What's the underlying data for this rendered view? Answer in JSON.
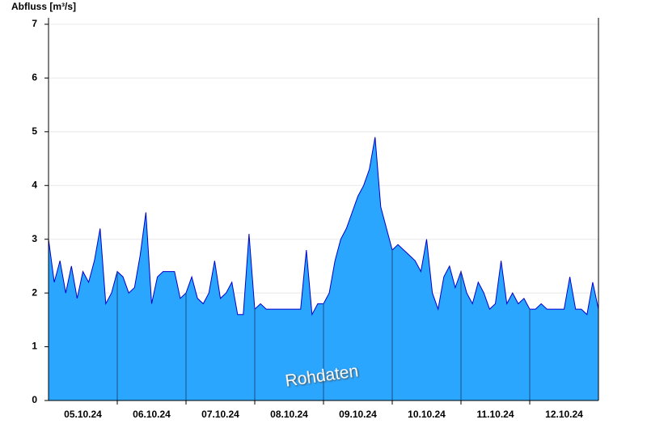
{
  "chart_data": {
    "type": "area",
    "y_label": "Abfluss [m³/s]",
    "annotation": "Rohdaten",
    "color": "#2aa6ff",
    "line_color": "#0000cc",
    "grid": true,
    "xlim": [
      0,
      192
    ],
    "xticks": [
      {
        "value": 12,
        "label": "05.10.24"
      },
      {
        "value": 36,
        "label": "06.10.24"
      },
      {
        "value": 60,
        "label": "07.10.24"
      },
      {
        "value": 84,
        "label": "08.10.24"
      },
      {
        "value": 108,
        "label": "09.10.24"
      },
      {
        "value": 132,
        "label": "10.10.24"
      },
      {
        "value": 156,
        "label": "11.10.24"
      },
      {
        "value": 180,
        "label": "12.10.24"
      }
    ],
    "ylim": [
      0,
      7.12
    ],
    "yticks": [
      0,
      1,
      2,
      3,
      4,
      5,
      6,
      7
    ],
    "x": [
      0,
      2,
      4,
      6,
      8,
      10,
      12,
      14,
      16,
      18,
      20,
      22,
      24,
      26,
      28,
      30,
      32,
      34,
      36,
      38,
      40,
      42,
      44,
      46,
      48,
      50,
      52,
      54,
      56,
      58,
      60,
      62,
      64,
      66,
      68,
      70,
      72,
      74,
      76,
      78,
      80,
      82,
      84,
      86,
      88,
      90,
      92,
      94,
      96,
      98,
      100,
      102,
      104,
      106,
      108,
      110,
      112,
      114,
      116,
      118,
      120,
      122,
      124,
      126,
      128,
      130,
      132,
      134,
      136,
      138,
      140,
      142,
      144,
      146,
      148,
      150,
      152,
      154,
      156,
      158,
      160,
      162,
      164,
      166,
      168,
      170,
      172,
      174,
      176,
      178,
      180,
      182,
      184,
      186,
      188,
      190,
      192
    ],
    "values": [
      3.0,
      2.2,
      2.6,
      2.0,
      2.5,
      1.9,
      2.4,
      2.2,
      2.6,
      3.2,
      1.8,
      2.0,
      2.4,
      2.3,
      2.0,
      2.1,
      2.7,
      3.5,
      1.8,
      2.3,
      2.4,
      2.4,
      2.4,
      1.9,
      2.0,
      2.3,
      1.9,
      1.8,
      2.0,
      2.6,
      1.9,
      2.0,
      2.2,
      1.6,
      1.6,
      3.1,
      1.7,
      1.8,
      1.7,
      1.7,
      1.7,
      1.7,
      1.7,
      1.7,
      1.7,
      2.8,
      1.6,
      1.8,
      1.8,
      2.0,
      2.6,
      3.0,
      3.2,
      3.5,
      3.8,
      4.0,
      4.3,
      4.9,
      3.6,
      3.2,
      2.8,
      2.9,
      2.8,
      2.7,
      2.6,
      2.4,
      3.0,
      2.0,
      1.7,
      2.3,
      2.5,
      2.1,
      2.4,
      2.0,
      1.8,
      2.2,
      2.0,
      1.7,
      1.8,
      2.6,
      1.8,
      2.0,
      1.8,
      1.9,
      1.7,
      1.7,
      1.8,
      1.7,
      1.7,
      1.7,
      1.7,
      2.3,
      1.7,
      1.7,
      1.6,
      2.2,
      1.7
    ]
  }
}
